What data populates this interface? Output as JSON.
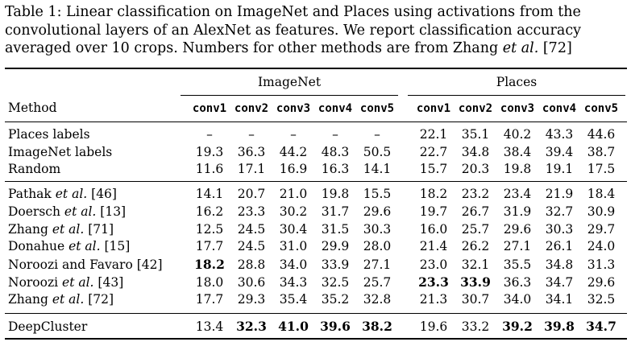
{
  "caption": {
    "line1": "Table 1: Linear classification on ImageNet and Places using activations from the",
    "line2": "convolutional layers of an AlexNet as features. We report classification accuracy",
    "line3_a": "averaged over 10 crops. Numbers for other methods are from Zhang ",
    "line3_em": "et al.",
    "line3_b": " [72]"
  },
  "table": {
    "method_header": "Method",
    "group_imagenet": "ImageNet",
    "group_places": "Places",
    "layers": [
      "conv1",
      "conv2",
      "conv3",
      "conv4",
      "conv5"
    ],
    "rows": [
      {
        "a": "Places labels",
        "em": "",
        "b": "",
        "imagenet": [
          "–",
          "–",
          "–",
          "–",
          "–"
        ],
        "places": [
          "22.1",
          "35.1",
          "40.2",
          "43.3",
          "44.6"
        ],
        "bold_in": [],
        "bold_pl": []
      },
      {
        "a": "ImageNet labels",
        "em": "",
        "b": "",
        "imagenet": [
          "19.3",
          "36.3",
          "44.2",
          "48.3",
          "50.5"
        ],
        "places": [
          "22.7",
          "34.8",
          "38.4",
          "39.4",
          "38.7"
        ],
        "bold_in": [],
        "bold_pl": []
      },
      {
        "a": "Random",
        "em": "",
        "b": "",
        "imagenet": [
          "11.6",
          "17.1",
          "16.9",
          "16.3",
          "14.1"
        ],
        "places": [
          "15.7",
          "20.3",
          "19.8",
          "19.1",
          "17.5"
        ],
        "bold_in": [],
        "bold_pl": []
      },
      {
        "a": "Pathak ",
        "em": "et al.",
        "b": " [46]",
        "imagenet": [
          "14.1",
          "20.7",
          "21.0",
          "19.8",
          "15.5"
        ],
        "places": [
          "18.2",
          "23.2",
          "23.4",
          "21.9",
          "18.4"
        ],
        "bold_in": [],
        "bold_pl": []
      },
      {
        "a": "Doersch ",
        "em": "et al.",
        "b": " [13]",
        "imagenet": [
          "16.2",
          "23.3",
          "30.2",
          "31.7",
          "29.6"
        ],
        "places": [
          "19.7",
          "26.7",
          "31.9",
          "32.7",
          "30.9"
        ],
        "bold_in": [],
        "bold_pl": []
      },
      {
        "a": "Zhang ",
        "em": "et al.",
        "b": " [71]",
        "imagenet": [
          "12.5",
          "24.5",
          "30.4",
          "31.5",
          "30.3"
        ],
        "places": [
          "16.0",
          "25.7",
          "29.6",
          "30.3",
          "29.7"
        ],
        "bold_in": [],
        "bold_pl": []
      },
      {
        "a": "Donahue ",
        "em": "et al.",
        "b": " [15]",
        "imagenet": [
          "17.7",
          "24.5",
          "31.0",
          "29.9",
          "28.0"
        ],
        "places": [
          "21.4",
          "26.2",
          "27.1",
          "26.1",
          "24.0"
        ],
        "bold_in": [],
        "bold_pl": []
      },
      {
        "a": "Noroozi and Favaro [42]",
        "em": "",
        "b": "",
        "imagenet": [
          "18.2",
          "28.8",
          "34.0",
          "33.9",
          "27.1"
        ],
        "places": [
          "23.0",
          "32.1",
          "35.5",
          "34.8",
          "31.3"
        ],
        "bold_in": [
          0
        ],
        "bold_pl": []
      },
      {
        "a": "Noroozi ",
        "em": "et al.",
        "b": " [43]",
        "imagenet": [
          "18.0",
          "30.6",
          "34.3",
          "32.5",
          "25.7"
        ],
        "places": [
          "23.3",
          "33.9",
          "36.3",
          "34.7",
          "29.6"
        ],
        "bold_in": [],
        "bold_pl": [
          0,
          1
        ]
      },
      {
        "a": "Zhang ",
        "em": "et al.",
        "b": " [72]",
        "imagenet": [
          "17.7",
          "29.3",
          "35.4",
          "35.2",
          "32.8"
        ],
        "places": [
          "21.3",
          "30.7",
          "34.0",
          "34.1",
          "32.5"
        ],
        "bold_in": [],
        "bold_pl": []
      },
      {
        "a": "DeepCluster",
        "em": "",
        "b": "",
        "imagenet": [
          "13.4",
          "32.3",
          "41.0",
          "39.6",
          "38.2"
        ],
        "places": [
          "19.6",
          "33.2",
          "39.2",
          "39.8",
          "34.7"
        ],
        "bold_in": [
          1,
          2,
          3,
          4
        ],
        "bold_pl": [
          2,
          3,
          4
        ]
      }
    ]
  }
}
